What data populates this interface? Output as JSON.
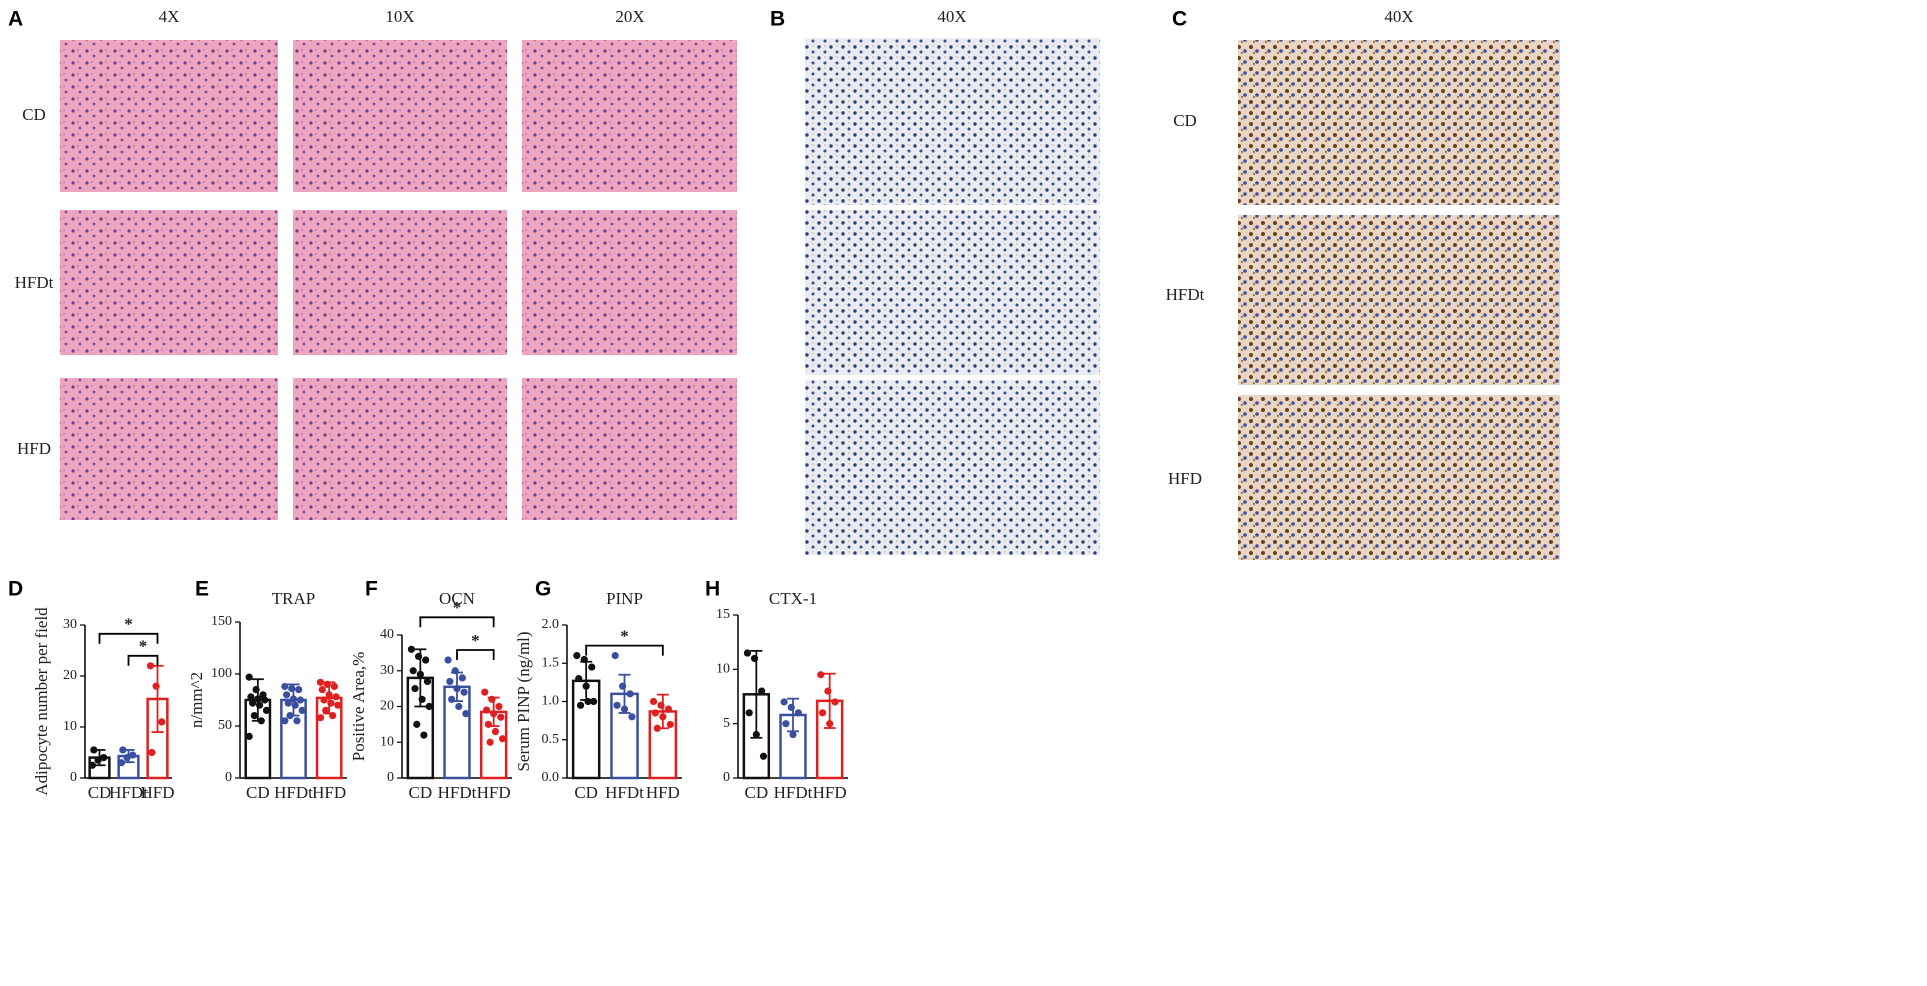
{
  "figure": {
    "panel_a": {
      "label": "A",
      "columns": [
        "4X",
        "10X",
        "20X"
      ],
      "rows": [
        "CD",
        "HFDt",
        "HFD"
      ]
    },
    "panel_b": {
      "label": "B",
      "column": "40X"
    },
    "panel_c": {
      "label": "C",
      "column": "40X",
      "rows": [
        "CD",
        "HFDt",
        "HFD"
      ]
    }
  },
  "chart_data": [
    {
      "type": "bar",
      "panel": "D",
      "ylabel": "Adipocyte number per field",
      "categories": [
        "CD",
        "HFDt",
        "HFD"
      ],
      "colors": [
        "#111111",
        "#3a4fa0",
        "#e02020"
      ],
      "values": [
        4,
        4.3,
        15.5
      ],
      "errors": [
        1.5,
        1.2,
        6.5
      ],
      "points": [
        [
          2.5,
          3.5,
          4,
          5.5
        ],
        [
          3,
          4,
          4.5,
          5.5
        ],
        [
          22,
          18,
          11,
          5
        ]
      ],
      "ylim": [
        0,
        30
      ],
      "yticks": [
        0,
        10,
        20,
        30
      ],
      "comparisons": [
        {
          "groups": [
            "HFDt",
            "HFD"
          ],
          "label": "*"
        },
        {
          "groups": [
            "CD",
            "HFD"
          ],
          "label": "*"
        }
      ]
    },
    {
      "type": "bar",
      "panel": "E",
      "title": "TRAP",
      "ylabel": "n/mm^2",
      "categories": [
        "CD",
        "HFDt",
        "HFD"
      ],
      "colors": [
        "#111111",
        "#3a4fa0",
        "#e02020"
      ],
      "values": [
        75,
        75,
        77
      ],
      "errors": [
        20,
        15,
        15
      ],
      "points": [
        [
          97,
          85,
          80,
          78,
          76,
          75,
          72,
          70,
          65,
          60,
          55,
          40
        ],
        [
          88,
          86,
          85,
          80,
          76,
          75,
          72,
          70,
          65,
          60,
          55,
          55
        ],
        [
          92,
          90,
          88,
          85,
          80,
          78,
          75,
          72,
          70,
          65,
          60,
          58
        ]
      ],
      "ylim": [
        0,
        150
      ],
      "yticks": [
        0,
        50,
        100,
        150
      ]
    },
    {
      "type": "bar",
      "panel": "F",
      "title": "OCN",
      "ylabel": "Positive Area,%",
      "categories": [
        "CD",
        "HFDt",
        "HFD"
      ],
      "colors": [
        "#111111",
        "#3a4fa0",
        "#e02020"
      ],
      "values": [
        28,
        25.5,
        18.5
      ],
      "errors": [
        8,
        4,
        4
      ],
      "points": [
        [
          36,
          34,
          33,
          30,
          29,
          27,
          25,
          22,
          20,
          15,
          12
        ],
        [
          33,
          30,
          28,
          27,
          25,
          24,
          22,
          20,
          18
        ],
        [
          24,
          22,
          20,
          19,
          18,
          17,
          15,
          13,
          11,
          10
        ]
      ],
      "ylim": [
        0,
        40
      ],
      "yticks": [
        0,
        10,
        20,
        30,
        40
      ],
      "comparisons": [
        {
          "groups": [
            "HFDt",
            "HFD"
          ],
          "label": "*"
        },
        {
          "groups": [
            "CD",
            "HFD"
          ],
          "label": "*"
        }
      ]
    },
    {
      "type": "bar",
      "panel": "G",
      "title": "PINP",
      "ylabel": "Serum PINP (ng/ml)",
      "categories": [
        "CD",
        "HFDt",
        "HFD"
      ],
      "colors": [
        "#111111",
        "#3a4fa0",
        "#e02020"
      ],
      "values": [
        1.27,
        1.1,
        0.87
      ],
      "errors": [
        0.25,
        0.25,
        0.22
      ],
      "points": [
        [
          1.6,
          1.55,
          1.45,
          1.3,
          1.2,
          1.0,
          0.95,
          1.0
        ],
        [
          1.6,
          1.2,
          1.1,
          0.95,
          0.9,
          0.8
        ],
        [
          1.0,
          0.95,
          0.9,
          0.85,
          0.8,
          0.7,
          0.65
        ]
      ],
      "ylim": [
        0,
        2
      ],
      "yticks": [
        {
          "value": 0,
          "label": "0.0"
        },
        0.5,
        {
          "value": 1,
          "label": "1.0"
        },
        1.5,
        {
          "value": 2,
          "label": "2.0"
        }
      ],
      "comparisons": [
        {
          "groups": [
            "CD",
            "HFD"
          ],
          "label": "*"
        }
      ]
    },
    {
      "type": "bar",
      "panel": "H",
      "title": "CTX-1",
      "categories": [
        "CD",
        "HFDt",
        "HFD"
      ],
      "colors": [
        "#111111",
        "#3a4fa0",
        "#e02020"
      ],
      "values": [
        7.7,
        5.8,
        7.1
      ],
      "errors": [
        4,
        1.5,
        2.5
      ],
      "points": [
        [
          11.5,
          11,
          8,
          6,
          4,
          2
        ],
        [
          7,
          6.5,
          6,
          5,
          4
        ],
        [
          9.5,
          8,
          7,
          6,
          5
        ]
      ],
      "ylim": [
        0,
        15
      ],
      "yticks": [
        0,
        5,
        10,
        15
      ]
    }
  ]
}
